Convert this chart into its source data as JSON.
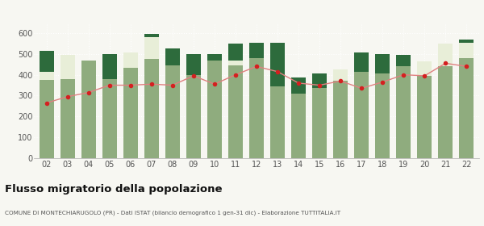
{
  "years": [
    "02",
    "03",
    "04",
    "05",
    "06",
    "07",
    "08",
    "09",
    "10",
    "11",
    "12",
    "13",
    "14",
    "15",
    "16",
    "17",
    "18",
    "19",
    "20",
    "21",
    "22"
  ],
  "iscritti_comuni": [
    375,
    380,
    470,
    380,
    435,
    475,
    445,
    400,
    470,
    445,
    480,
    345,
    310,
    335,
    370,
    415,
    405,
    440,
    395,
    440,
    480
  ],
  "iscritti_estero": [
    40,
    115,
    0,
    0,
    70,
    105,
    0,
    0,
    0,
    25,
    0,
    0,
    0,
    0,
    55,
    0,
    0,
    0,
    70,
    110,
    75
  ],
  "iscritti_altri": [
    100,
    0,
    0,
    120,
    0,
    15,
    80,
    100,
    30,
    80,
    75,
    210,
    75,
    70,
    0,
    90,
    95,
    55,
    0,
    0,
    15
  ],
  "cancellati": [
    265,
    295,
    315,
    350,
    350,
    355,
    350,
    395,
    355,
    400,
    440,
    415,
    360,
    350,
    370,
    335,
    365,
    400,
    395,
    455,
    440
  ],
  "color_comuni": "#8fac7e",
  "color_estero": "#e8eed8",
  "color_altri": "#2d6b3c",
  "color_cancellati": "#d42020",
  "color_line": "#e08080",
  "title": "Flusso migratorio della popolazione",
  "subtitle": "COMUNE DI MONTECHIARUGOLO (PR) - Dati ISTAT (bilancio demografico 1 gen-31 dic) - Elaborazione TUTTITALIA.IT",
  "ylim": [
    0,
    650
  ],
  "yticks": [
    0,
    100,
    200,
    300,
    400,
    500,
    600
  ],
  "background_color": "#f7f7f2",
  "bar_width": 0.7
}
